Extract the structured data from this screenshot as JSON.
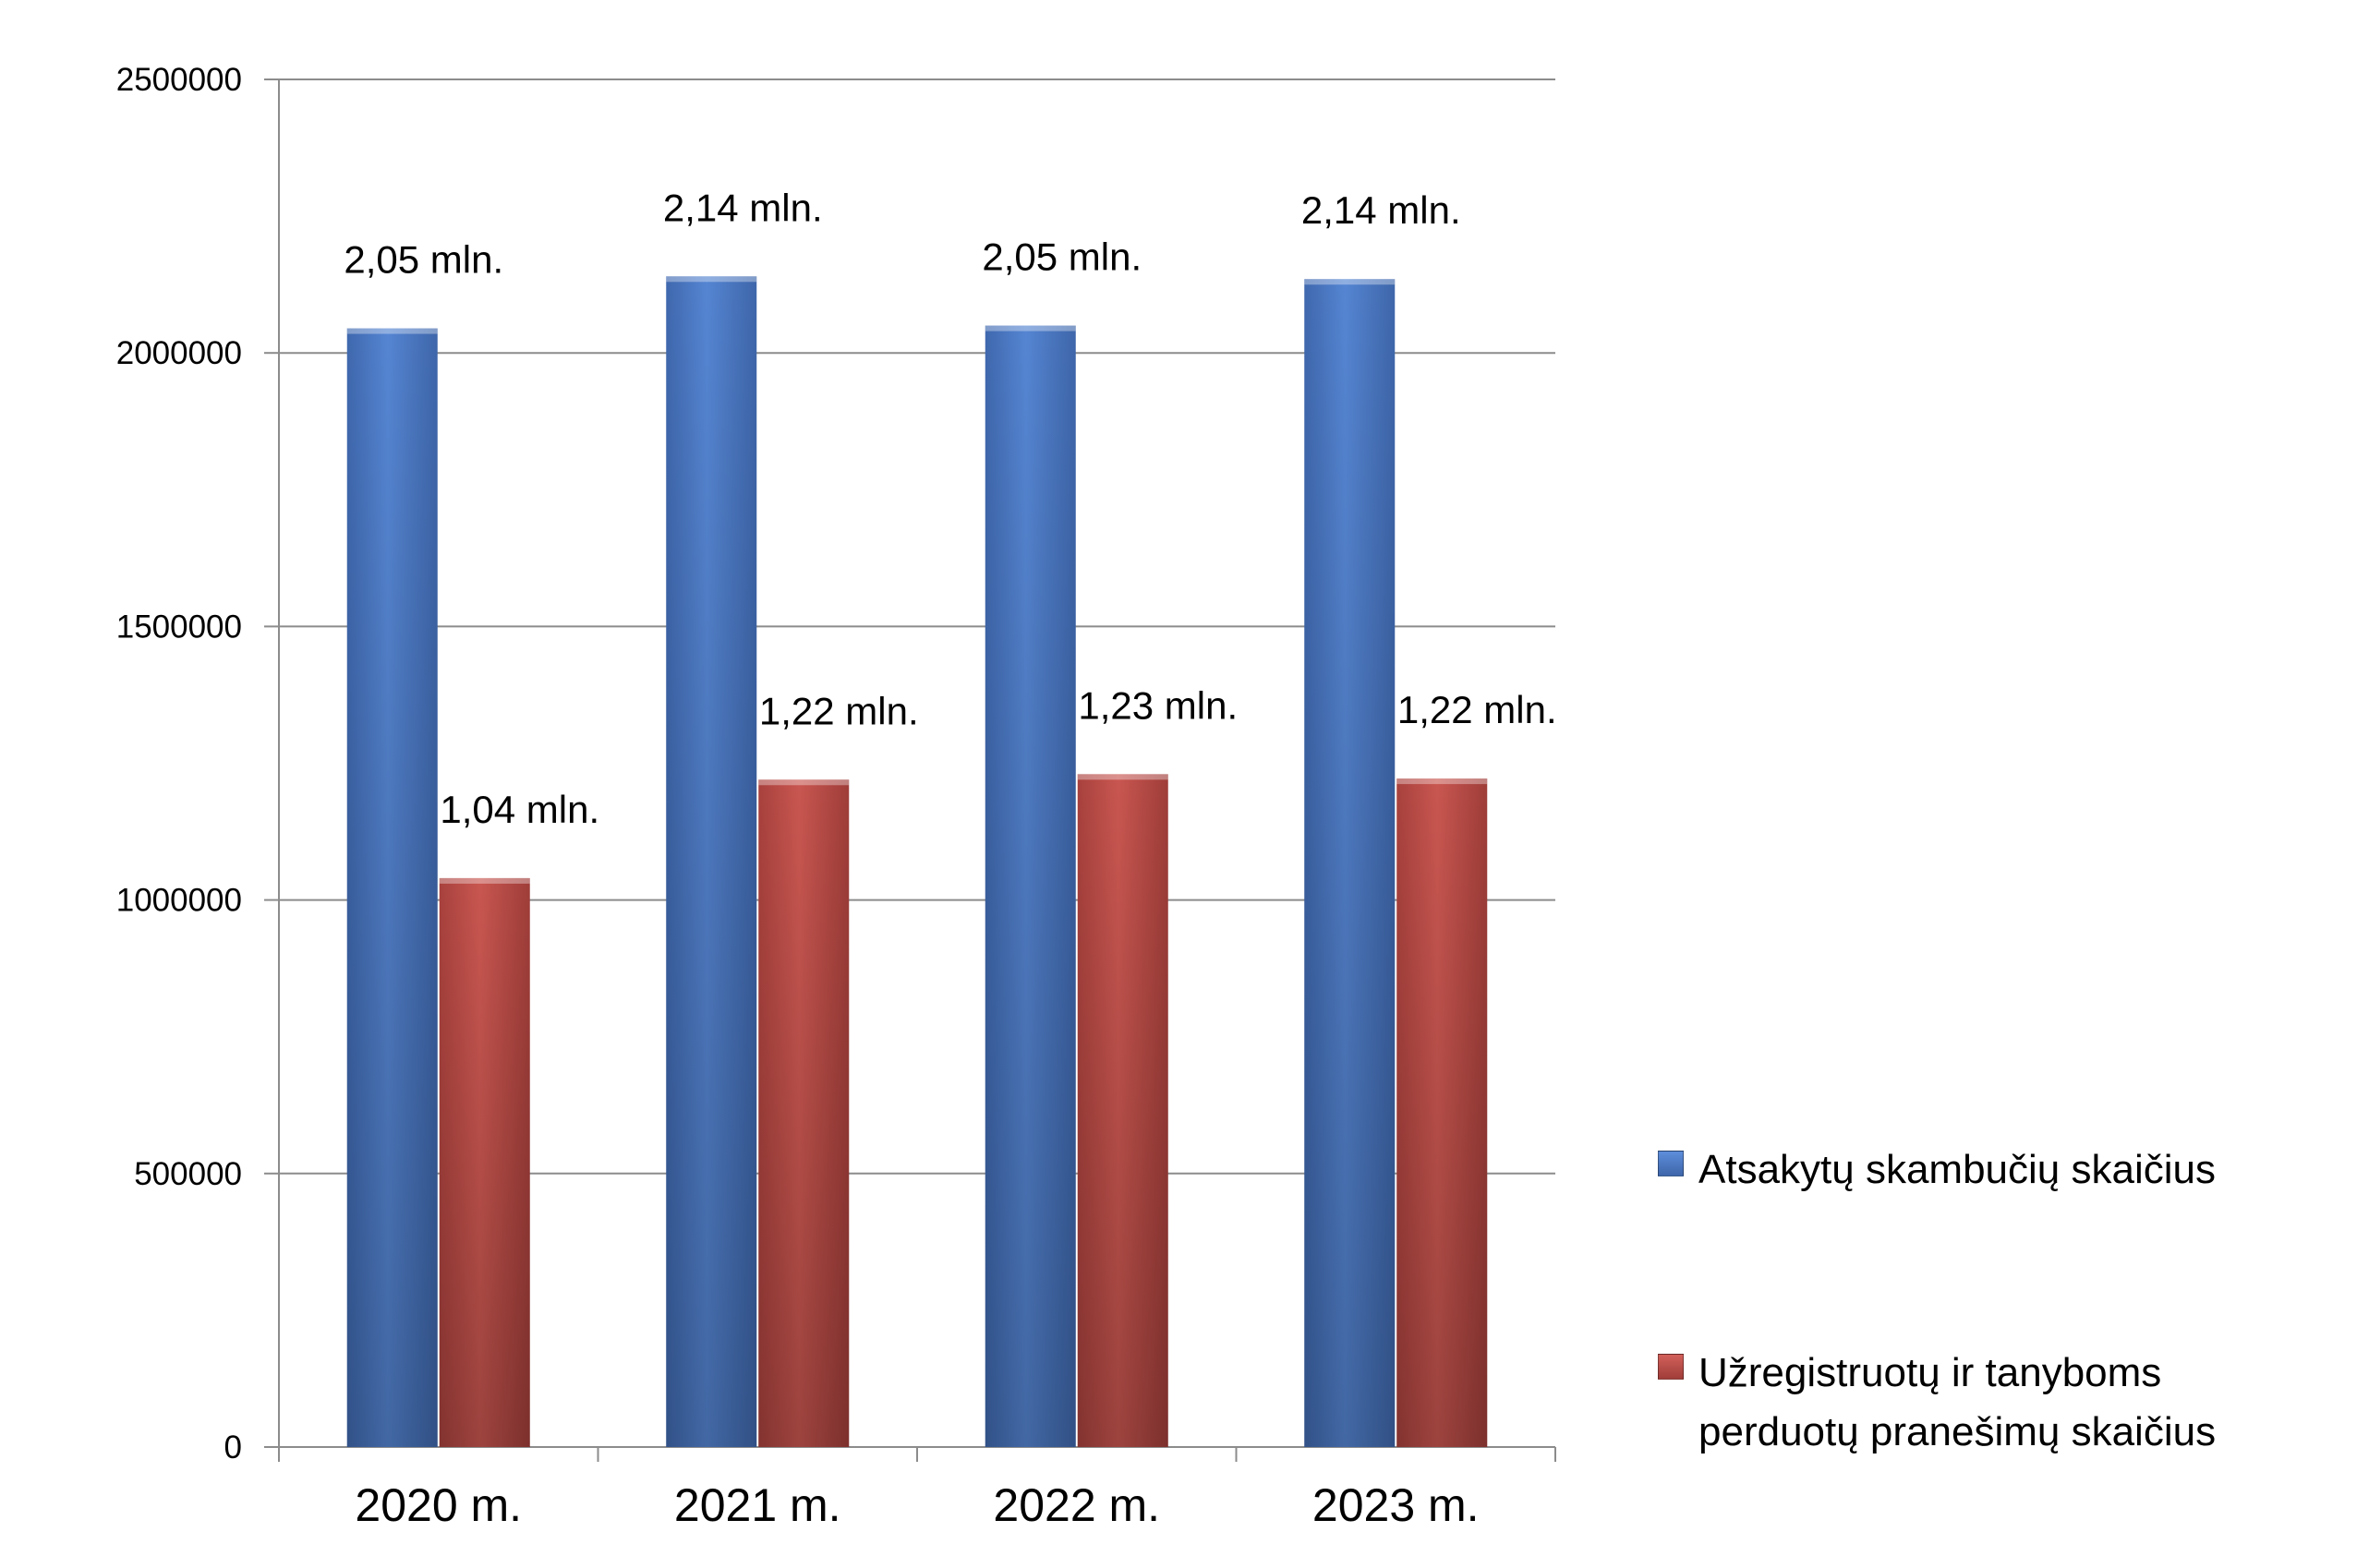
{
  "chart_data": {
    "type": "bar",
    "categories": [
      "2020 m.",
      "2021 m.",
      "2022 m.",
      "2023 m."
    ],
    "series": [
      {
        "name": "Atsakytų skambučių skaičius",
        "color": "#4F7ECB",
        "values": [
          2045000,
          2140000,
          2050000,
          2135000
        ],
        "labels": [
          "2,05 mln.",
          "2,14 mln.",
          "2,05 mln.",
          "2,14 mln."
        ]
      },
      {
        "name": "Užregistruotų ir tanyboms perduotų pranešimų skaičius",
        "color": "#C0504D",
        "values": [
          1040000,
          1220000,
          1230000,
          1222000
        ],
        "labels": [
          "1,04 mln.",
          "1,22 mln.",
          "1,23 mln.",
          "1,22 mln."
        ]
      }
    ],
    "ylim": [
      0,
      2500000
    ],
    "yticks": [
      "0",
      "500000",
      "1000000",
      "1500000",
      "2000000",
      "2500000"
    ],
    "grid": true,
    "legend_position": "right",
    "title": "",
    "xlabel": "",
    "ylabel": ""
  }
}
